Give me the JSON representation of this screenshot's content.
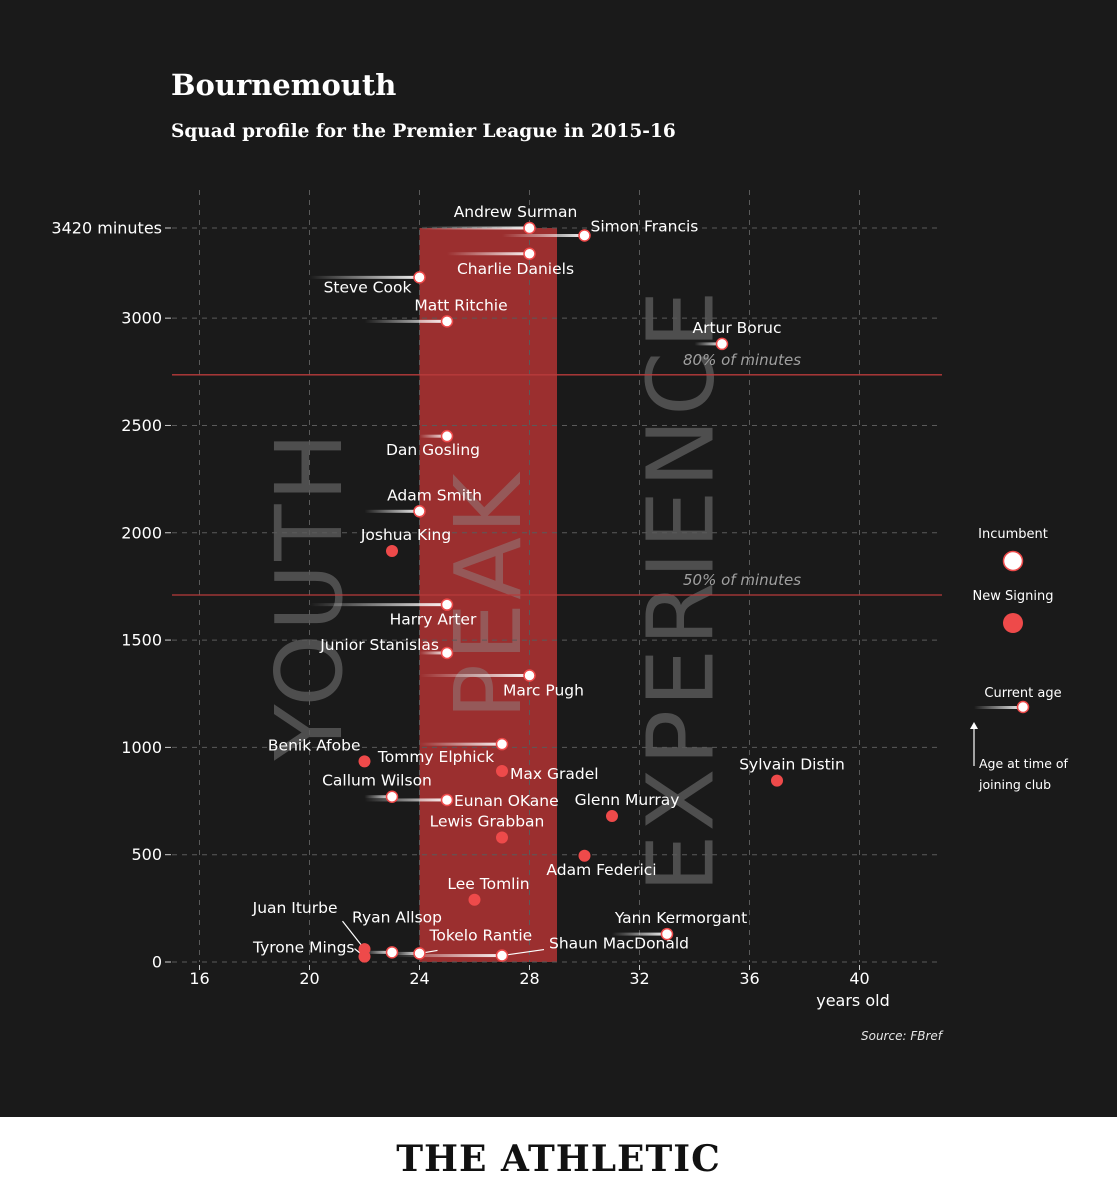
{
  "title": "Bournemouth",
  "subtitle": "Squad profile for the Premier League in 2015-16",
  "source": "Source: FBref",
  "brand": "THE ATHLETIC",
  "colors": {
    "background": "#1a1a1a",
    "peak_band": "#9b2f2f",
    "new_signing": "#ee4a4a",
    "incumbent": "#ffffff",
    "reference_line": "#b83b3b",
    "footer": "#ffffff"
  },
  "chart_data": {
    "type": "scatter",
    "xlabel": "years old",
    "ylabel": "minutes",
    "xlim": [
      15,
      43
    ],
    "ylim": [
      0,
      3420
    ],
    "x_ticks": [
      16,
      20,
      24,
      28,
      32,
      36,
      40
    ],
    "y_ticks": [
      {
        "value": 0,
        "label": "0"
      },
      {
        "value": 500,
        "label": "500"
      },
      {
        "value": 1000,
        "label": "1000"
      },
      {
        "value": 1500,
        "label": "1500"
      },
      {
        "value": 2000,
        "label": "2000"
      },
      {
        "value": 2500,
        "label": "2500"
      },
      {
        "value": 3000,
        "label": "3000"
      },
      {
        "value": 3420,
        "label": "3420 minutes"
      }
    ],
    "grid": true,
    "peak_band": {
      "x_from": 24,
      "x_to": 29,
      "y_top": 3420
    },
    "zone_labels": [
      {
        "text": "YOUTH",
        "center_age": 20
      },
      {
        "text": "PEAK",
        "center_age": 26.5
      },
      {
        "text": "EXPERIENCE",
        "center_age": 33.5
      }
    ],
    "reference_lines": [
      {
        "value": 2736,
        "label": "80% of minutes"
      },
      {
        "value": 1710,
        "label": "50% of minutes"
      }
    ],
    "legend": {
      "incumbent": "Incumbent",
      "new_signing": "New Signing",
      "current_age": "Current age",
      "age_joined": "Age at time of joining club"
    },
    "players": [
      {
        "name": "Andrew Surman",
        "age": 28,
        "joined_age": 24,
        "minutes": 3420,
        "type": "incumbent",
        "label_pos": "above"
      },
      {
        "name": "Simon Francis",
        "age": 30,
        "joined_age": 27,
        "minutes": 3385,
        "type": "incumbent",
        "label_pos": "right"
      },
      {
        "name": "Charlie Daniels",
        "age": 28,
        "joined_age": 25,
        "minutes": 3300,
        "type": "incumbent",
        "label_pos": "below"
      },
      {
        "name": "Steve Cook",
        "age": 24,
        "joined_age": 20,
        "minutes": 3190,
        "type": "incumbent",
        "label_pos": "below-left"
      },
      {
        "name": "Matt Ritchie",
        "age": 25,
        "joined_age": 22,
        "minutes": 2985,
        "type": "incumbent",
        "label_pos": "above"
      },
      {
        "name": "Artur Boruc",
        "age": 35,
        "joined_age": 34,
        "minutes": 2880,
        "type": "incumbent",
        "label_pos": "above"
      },
      {
        "name": "Dan Gosling",
        "age": 25,
        "joined_age": 24,
        "minutes": 2450,
        "type": "incumbent",
        "label_pos": "below"
      },
      {
        "name": "Adam Smith",
        "age": 24,
        "joined_age": 22,
        "minutes": 2100,
        "type": "incumbent",
        "label_pos": "above"
      },
      {
        "name": "Joshua King",
        "age": 23,
        "joined_age": 23,
        "minutes": 1915,
        "type": "new",
        "label_pos": "above"
      },
      {
        "name": "Harry Arter",
        "age": 25,
        "joined_age": 20,
        "minutes": 1665,
        "type": "incumbent",
        "label_pos": "below"
      },
      {
        "name": "Junior Stanislas",
        "age": 25,
        "joined_age": 24,
        "minutes": 1440,
        "type": "incumbent",
        "label_pos": "above-left"
      },
      {
        "name": "Marc Pugh",
        "age": 28,
        "joined_age": 24,
        "minutes": 1335,
        "type": "incumbent",
        "label_pos": "below"
      },
      {
        "name": "Benik Afobe",
        "age": 22,
        "joined_age": 22,
        "minutes": 935,
        "type": "new",
        "label_pos": "above-left"
      },
      {
        "name": "Tommy Elphick",
        "age": 27,
        "joined_age": 24,
        "minutes": 1015,
        "type": "incumbent",
        "label_pos": "below"
      },
      {
        "name": "Max Gradel",
        "age": 27,
        "joined_age": 27,
        "minutes": 890,
        "type": "new",
        "label_pos": "right"
      },
      {
        "name": "Sylvain Distin",
        "age": 37,
        "joined_age": 37,
        "minutes": 845,
        "type": "new",
        "label_pos": "above"
      },
      {
        "name": "Callum Wilson",
        "age": 23,
        "joined_age": 22,
        "minutes": 770,
        "type": "incumbent",
        "label_pos": "above"
      },
      {
        "name": "Eunan OKane",
        "age": 25,
        "joined_age": 22,
        "minutes": 755,
        "type": "incumbent",
        "label_pos": "right"
      },
      {
        "name": "Glenn Murray",
        "age": 31,
        "joined_age": 31,
        "minutes": 680,
        "type": "new",
        "label_pos": "above"
      },
      {
        "name": "Lewis Grabban",
        "age": 27,
        "joined_age": 27,
        "minutes": 580,
        "type": "new",
        "label_pos": "above"
      },
      {
        "name": "Adam Federici",
        "age": 30,
        "joined_age": 30,
        "minutes": 495,
        "type": "new",
        "label_pos": "below"
      },
      {
        "name": "Lee Tomlin",
        "age": 26,
        "joined_age": 26,
        "minutes": 290,
        "type": "new",
        "label_pos": "above"
      },
      {
        "name": "Yann Kermorgant",
        "age": 33,
        "joined_age": 31,
        "minutes": 130,
        "type": "incumbent",
        "label_pos": "above"
      },
      {
        "name": "Ryan Allsop",
        "age": 23,
        "joined_age": 22,
        "minutes": 45,
        "type": "incumbent",
        "label_pos": "above"
      },
      {
        "name": "Juan Iturbe",
        "age": 22,
        "joined_age": 22,
        "minutes": 60,
        "type": "new",
        "label_pos": "leader"
      },
      {
        "name": "Tyrone Mings",
        "age": 22,
        "joined_age": 22,
        "minutes": 25,
        "type": "new",
        "label_pos": "leader"
      },
      {
        "name": "Tokelo Rantie",
        "age": 24,
        "joined_age": 23,
        "minutes": 40,
        "type": "incumbent",
        "label_pos": "leader"
      },
      {
        "name": "Shaun MacDonald",
        "age": 27,
        "joined_age": 23,
        "minutes": 30,
        "type": "incumbent",
        "label_pos": "leader"
      }
    ]
  }
}
